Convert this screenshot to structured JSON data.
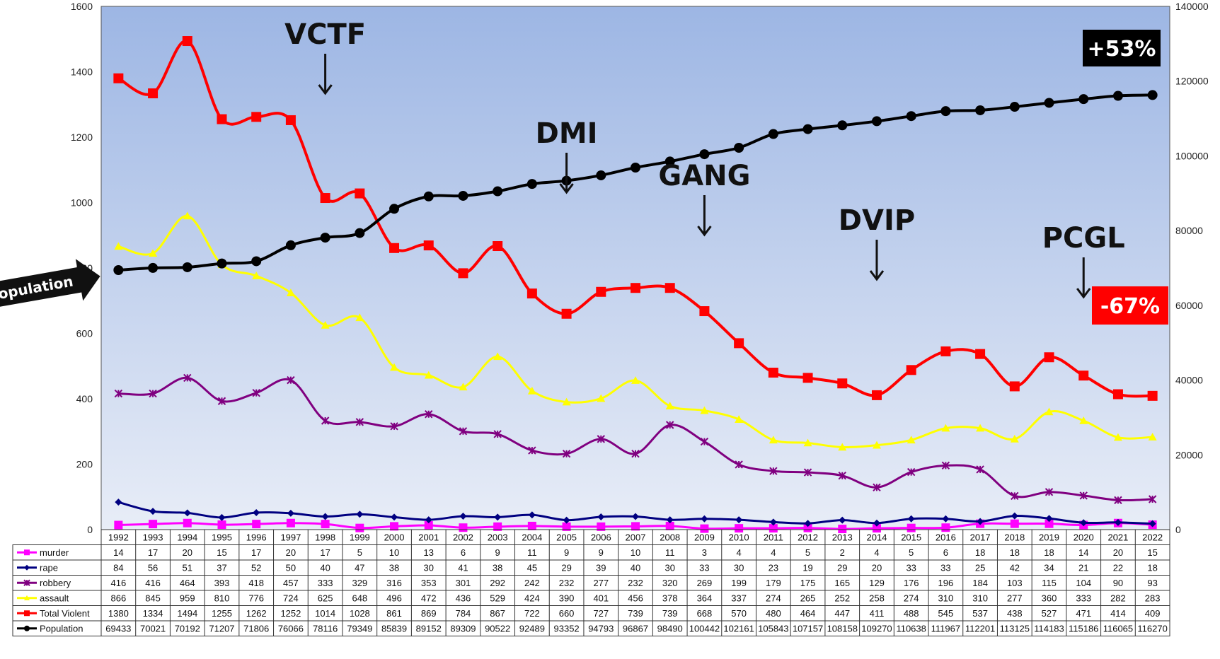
{
  "chart_data": {
    "type": "line",
    "categories": [
      "1992",
      "1993",
      "1994",
      "1995",
      "1996",
      "1997",
      "1998",
      "1999",
      "2000",
      "2001",
      "2002",
      "2003",
      "2004",
      "2005",
      "2006",
      "2007",
      "2008",
      "2009",
      "2010",
      "2011",
      "2012",
      "2013",
      "2014",
      "2015",
      "2016",
      "2017",
      "2018",
      "2019",
      "2020",
      "2021",
      "2022"
    ],
    "left_axis": {
      "ylim": [
        0,
        1600
      ],
      "ticks": [
        "0",
        "200",
        "400",
        "600",
        "800",
        "1000",
        "1200",
        "1400",
        "1600"
      ]
    },
    "right_axis": {
      "ylim": [
        0,
        140000
      ],
      "ticks": [
        "0",
        "20000",
        "40000",
        "60000",
        "80000",
        "100000",
        "120000",
        "140000"
      ]
    },
    "series": [
      {
        "name": "murder",
        "axis": "left",
        "color": "#ff00ff",
        "marker": "square",
        "values": [
          14,
          17,
          20,
          15,
          17,
          20,
          17,
          5,
          10,
          13,
          6,
          9,
          11,
          9,
          9,
          10,
          11,
          3,
          4,
          4,
          5,
          2,
          4,
          5,
          6,
          18,
          18,
          18,
          14,
          20,
          15
        ]
      },
      {
        "name": "rape",
        "axis": "left",
        "color": "#000080",
        "marker": "diamond",
        "values": [
          84,
          56,
          51,
          37,
          52,
          50,
          40,
          47,
          38,
          30,
          41,
          38,
          45,
          29,
          39,
          40,
          30,
          33,
          30,
          23,
          19,
          29,
          20,
          33,
          33,
          25,
          42,
          34,
          21,
          22,
          18
        ]
      },
      {
        "name": "robbery",
        "axis": "left",
        "color": "#800080",
        "marker": "star",
        "values": [
          416,
          416,
          464,
          393,
          418,
          457,
          333,
          329,
          316,
          353,
          301,
          292,
          242,
          232,
          277,
          232,
          320,
          269,
          199,
          179,
          175,
          165,
          129,
          176,
          196,
          184,
          103,
          115,
          104,
          90,
          93
        ]
      },
      {
        "name": "assault",
        "axis": "left",
        "color": "#ffff00",
        "marker": "triangle",
        "values": [
          866,
          845,
          959,
          810,
          776,
          724,
          625,
          648,
          496,
          472,
          436,
          529,
          424,
          390,
          401,
          456,
          378,
          364,
          337,
          274,
          265,
          252,
          258,
          274,
          310,
          310,
          277,
          360,
          333,
          282,
          283
        ]
      },
      {
        "name": "Total Violent",
        "axis": "left",
        "color": "#ff0000",
        "marker": "square",
        "values": [
          1380,
          1334,
          1494,
          1255,
          1262,
          1252,
          1014,
          1028,
          861,
          869,
          784,
          867,
          722,
          660,
          727,
          739,
          739,
          668,
          570,
          480,
          464,
          447,
          411,
          488,
          545,
          537,
          438,
          527,
          471,
          414,
          409
        ]
      },
      {
        "name": "Population",
        "axis": "right",
        "color": "#000000",
        "marker": "circle",
        "values": [
          69433,
          70021,
          70192,
          71207,
          71806,
          76066,
          78116,
          79349,
          85839,
          89152,
          89309,
          90522,
          92489,
          93352,
          94793,
          96867,
          98490,
          100442,
          102161,
          105843,
          107157,
          108158,
          109270,
          110638,
          111967,
          112201,
          113125,
          114183,
          115186,
          116065,
          116270
        ]
      }
    ],
    "annotations": [
      {
        "text": "VCTF",
        "year": "1998"
      },
      {
        "text": "DMI",
        "year": "2005"
      },
      {
        "text": "GANG",
        "year": "2009"
      },
      {
        "text": "DVIP",
        "year": "2014"
      },
      {
        "text": "PCGL",
        "year": "2020"
      }
    ],
    "badges": [
      {
        "text": "+53%",
        "bg": "#000000"
      },
      {
        "text": "-67%",
        "bg": "#ff0000"
      }
    ],
    "population_callout": "Population",
    "legend": "bottom data table"
  }
}
